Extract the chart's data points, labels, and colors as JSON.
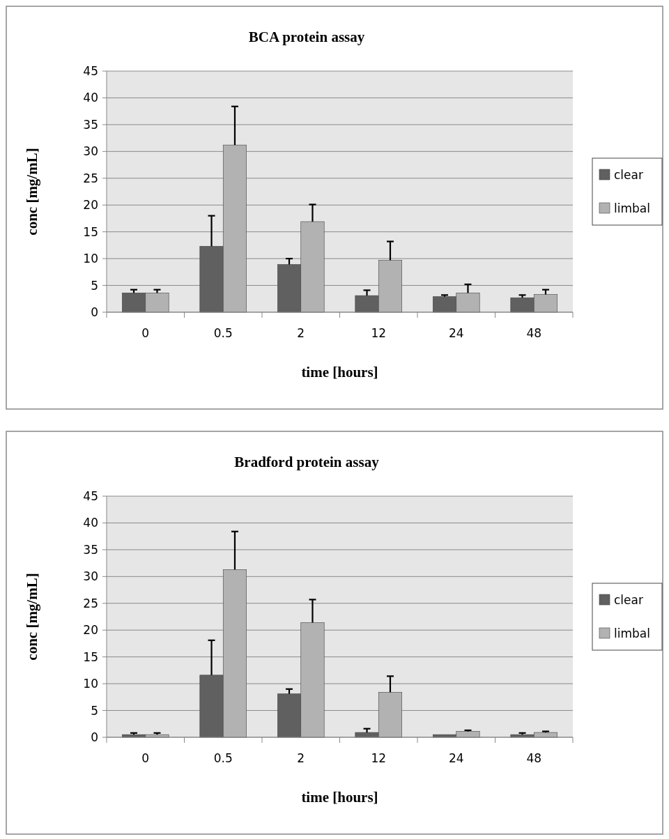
{
  "chart_data": [
    {
      "type": "bar",
      "title": "BCA protein assay",
      "xlabel": "time [hours]",
      "ylabel": "conc [mg/mL]",
      "categories": [
        "0",
        "0.5",
        "2",
        "12",
        "24",
        "48"
      ],
      "series": [
        {
          "name": "clear",
          "color": "#606060",
          "values": [
            3.6,
            12.3,
            8.9,
            3.1,
            2.9,
            2.7
          ],
          "errors": [
            [
              3.6,
              4.2
            ],
            [
              12.3,
              18
            ],
            [
              8.9,
              10
            ],
            [
              3.1,
              4.1
            ],
            [
              2.9,
              3.2
            ],
            [
              2.7,
              3.2
            ]
          ]
        },
        {
          "name": "limbal",
          "color": "#b2b2b2",
          "values": [
            3.6,
            31.2,
            16.9,
            9.7,
            3.6,
            3.3
          ],
          "errors": [
            [
              3.6,
              4.2
            ],
            [
              31.2,
              38.4
            ],
            [
              16.9,
              20.1
            ],
            [
              9.7,
              13.2
            ],
            [
              3.6,
              5.2
            ],
            [
              3.3,
              4.2
            ]
          ]
        }
      ],
      "ylim": [
        0,
        45
      ],
      "yticks": [
        0,
        5,
        10,
        15,
        20,
        25,
        30,
        35,
        40,
        45
      ],
      "grid": "y",
      "legend": "right"
    },
    {
      "type": "bar",
      "title": "Bradford protein assay",
      "xlabel": "time [hours]",
      "ylabel": "conc [mg/mL]",
      "categories": [
        "0",
        "0.5",
        "2",
        "12",
        "24",
        "48"
      ],
      "series": [
        {
          "name": "clear",
          "color": "#606060",
          "values": [
            0.5,
            11.6,
            8.1,
            0.9,
            0.5,
            0.5
          ],
          "errors": [
            [
              0.5,
              0.8
            ],
            [
              11.6,
              18.1
            ],
            [
              8.1,
              9
            ],
            [
              0.9,
              1.6
            ],
            null,
            [
              0.5,
              0.8
            ]
          ]
        },
        {
          "name": "limbal",
          "color": "#b2b2b2",
          "values": [
            0.5,
            31.3,
            21.4,
            8.4,
            1.1,
            0.9
          ],
          "errors": [
            [
              0.5,
              0.8
            ],
            [
              31.3,
              38.4
            ],
            [
              21.4,
              25.7
            ],
            [
              8.4,
              11.4
            ],
            [
              1.1,
              1.3
            ],
            [
              0.9,
              1.1
            ]
          ]
        }
      ],
      "ylim": [
        0,
        45
      ],
      "yticks": [
        0,
        5,
        10,
        15,
        20,
        25,
        30,
        35,
        40,
        45
      ],
      "grid": "y",
      "legend": "right"
    }
  ]
}
